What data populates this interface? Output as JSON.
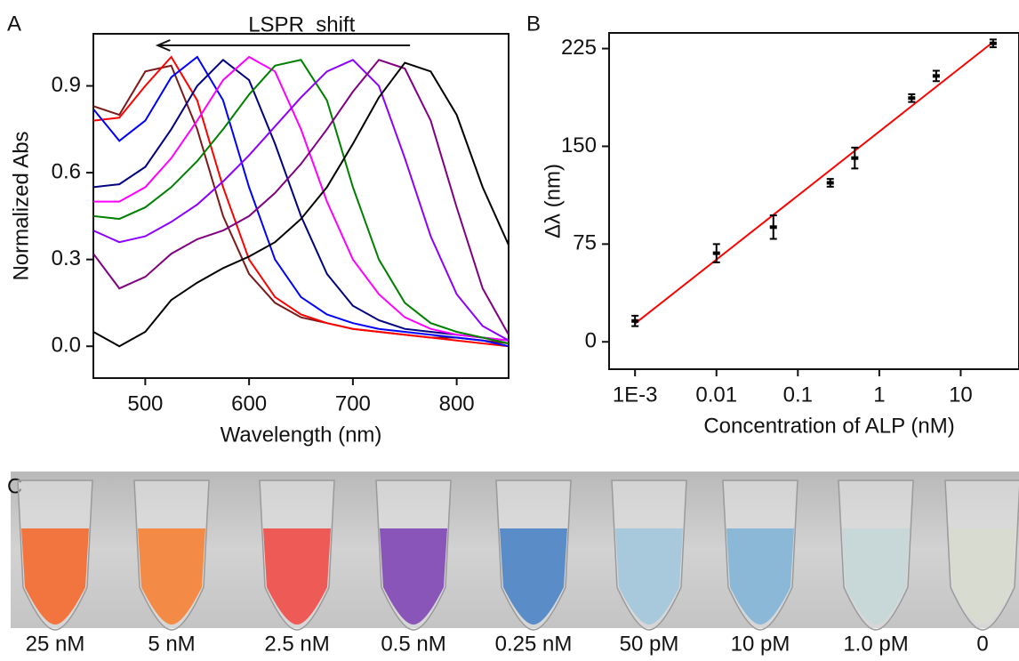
{
  "chart_data": [
    {
      "type": "line",
      "panel": "A",
      "annotation": "LSPR  shift",
      "xlabel": "Wavelength (nm)",
      "ylabel": "Normalized Abs",
      "x": [
        450,
        475,
        500,
        525,
        550,
        575,
        600,
        625,
        650,
        675,
        700,
        725,
        750,
        775,
        800,
        825,
        850
      ],
      "xlim": [
        450,
        850
      ],
      "ylim": [
        -0.11,
        1.08
      ],
      "xticks": [
        500,
        600,
        700,
        800
      ],
      "yticks": [
        {
          "value": 0,
          "label": "0.0"
        },
        0.3,
        0.6,
        0.9
      ],
      "series": [
        {
          "color": "#7b1a1a",
          "values": [
            0.83,
            0.8,
            0.95,
            0.97,
            0.75,
            0.45,
            0.25,
            0.15,
            0.1,
            0.08,
            0.06,
            0.05,
            0.04,
            0.03,
            0.03,
            0.02,
            0.01
          ]
        },
        {
          "color": "#ff0000",
          "values": [
            0.78,
            0.79,
            0.9,
            1.0,
            0.85,
            0.55,
            0.3,
            0.17,
            0.11,
            0.08,
            0.06,
            0.05,
            0.04,
            0.03,
            0.02,
            0.01,
            0.0
          ]
        },
        {
          "color": "#0000ff",
          "values": [
            0.82,
            0.71,
            0.78,
            0.93,
            1.0,
            0.85,
            0.55,
            0.3,
            0.17,
            0.11,
            0.08,
            0.06,
            0.05,
            0.04,
            0.03,
            0.02,
            0.0
          ]
        },
        {
          "color": "#000080",
          "values": [
            0.55,
            0.56,
            0.62,
            0.75,
            0.9,
            0.99,
            0.92,
            0.7,
            0.45,
            0.25,
            0.14,
            0.09,
            0.06,
            0.05,
            0.04,
            0.03,
            0.02
          ]
        },
        {
          "color": "#ff00ff",
          "values": [
            0.5,
            0.5,
            0.55,
            0.65,
            0.78,
            0.92,
            1.0,
            0.95,
            0.75,
            0.5,
            0.3,
            0.18,
            0.1,
            0.06,
            0.04,
            0.03,
            0.02
          ]
        },
        {
          "color": "#008000",
          "values": [
            0.45,
            0.44,
            0.48,
            0.55,
            0.64,
            0.75,
            0.87,
            0.97,
            0.99,
            0.85,
            0.55,
            0.3,
            0.15,
            0.08,
            0.05,
            0.03,
            0.01
          ]
        },
        {
          "color": "#8b00ff",
          "values": [
            0.4,
            0.36,
            0.38,
            0.43,
            0.49,
            0.57,
            0.66,
            0.76,
            0.86,
            0.95,
            0.99,
            0.9,
            0.65,
            0.38,
            0.18,
            0.07,
            0.02
          ]
        },
        {
          "color": "#800080",
          "values": [
            0.32,
            0.2,
            0.24,
            0.32,
            0.37,
            0.4,
            0.45,
            0.53,
            0.63,
            0.75,
            0.88,
            0.99,
            0.96,
            0.78,
            0.48,
            0.2,
            0.04
          ]
        },
        {
          "color": "#000000",
          "values": [
            0.05,
            0.0,
            0.05,
            0.16,
            0.22,
            0.27,
            0.31,
            0.36,
            0.44,
            0.55,
            0.7,
            0.86,
            0.98,
            0.95,
            0.8,
            0.55,
            0.35
          ]
        }
      ]
    },
    {
      "type": "scatter",
      "panel": "B",
      "log_x": true,
      "xlabel": "Concentration of ALP (nM)",
      "ylabel": "Δλ (nm)",
      "xlim": [
        0.00048,
        52
      ],
      "ylim": [
        -21,
        237
      ],
      "xticks": [
        {
          "value": 0.001,
          "label": "1E-3"
        },
        0.01,
        0.1,
        1,
        10
      ],
      "yticks": [
        0,
        75,
        150,
        225
      ],
      "x": [
        0.001,
        0.01,
        0.05,
        0.25,
        0.5,
        2.5,
        5,
        25
      ],
      "values": [
        16,
        68,
        88,
        122,
        141,
        187,
        204,
        229
      ],
      "errors": [
        4,
        7,
        9,
        3,
        8,
        3,
        4,
        3
      ],
      "color": "#000000",
      "fit": {
        "x": [
          0.001,
          25
        ],
        "values": [
          14,
          230
        ],
        "color": "#ff0000"
      }
    }
  ],
  "photo": {
    "panel": "C",
    "tubes": [
      {
        "label": "25 nM",
        "color": "#f2743f"
      },
      {
        "label": "5 nM",
        "color": "#f38a45"
      },
      {
        "label": "2.5 nM",
        "color": "#ee5a55"
      },
      {
        "label": "0.5 nM",
        "color": "#8a55b8"
      },
      {
        "label": "0.25 nM",
        "color": "#5a8cc8"
      },
      {
        "label": "50 pM",
        "color": "#a8c8dc"
      },
      {
        "label": "10 pM",
        "color": "#8cb8d8"
      },
      {
        "label": "1.0 pM",
        "color": "#c8d8d8"
      },
      {
        "label": "0",
        "color": "#d8dcd0"
      }
    ]
  }
}
